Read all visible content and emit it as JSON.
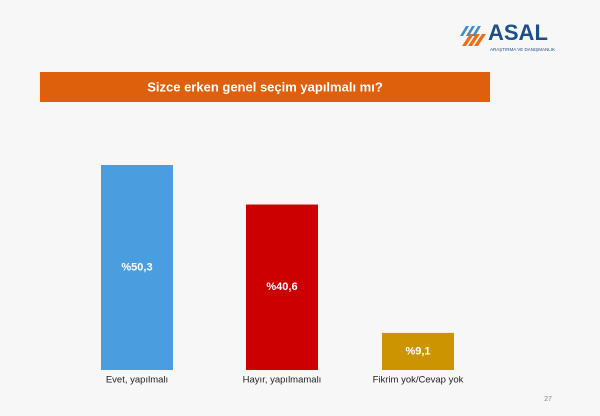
{
  "logo": {
    "name": "ASAL",
    "tagline": "ARAŞTIRMA VE DANIŞMANLIK"
  },
  "page_number": "27",
  "chart_data": {
    "type": "bar",
    "title": "Sizce erken genel seçim yapılmalı mı?",
    "categories": [
      "Evet, yapılmalı",
      "Hayır, yapılmamalı",
      "Fikrim yok/Cevap yok"
    ],
    "values": [
      50.3,
      40.6,
      9.1
    ],
    "value_labels": [
      "%50,3",
      "%40,6",
      "%9,1"
    ],
    "colors": [
      "#4a9ee0",
      "#cc0000",
      "#cc9400"
    ]
  }
}
